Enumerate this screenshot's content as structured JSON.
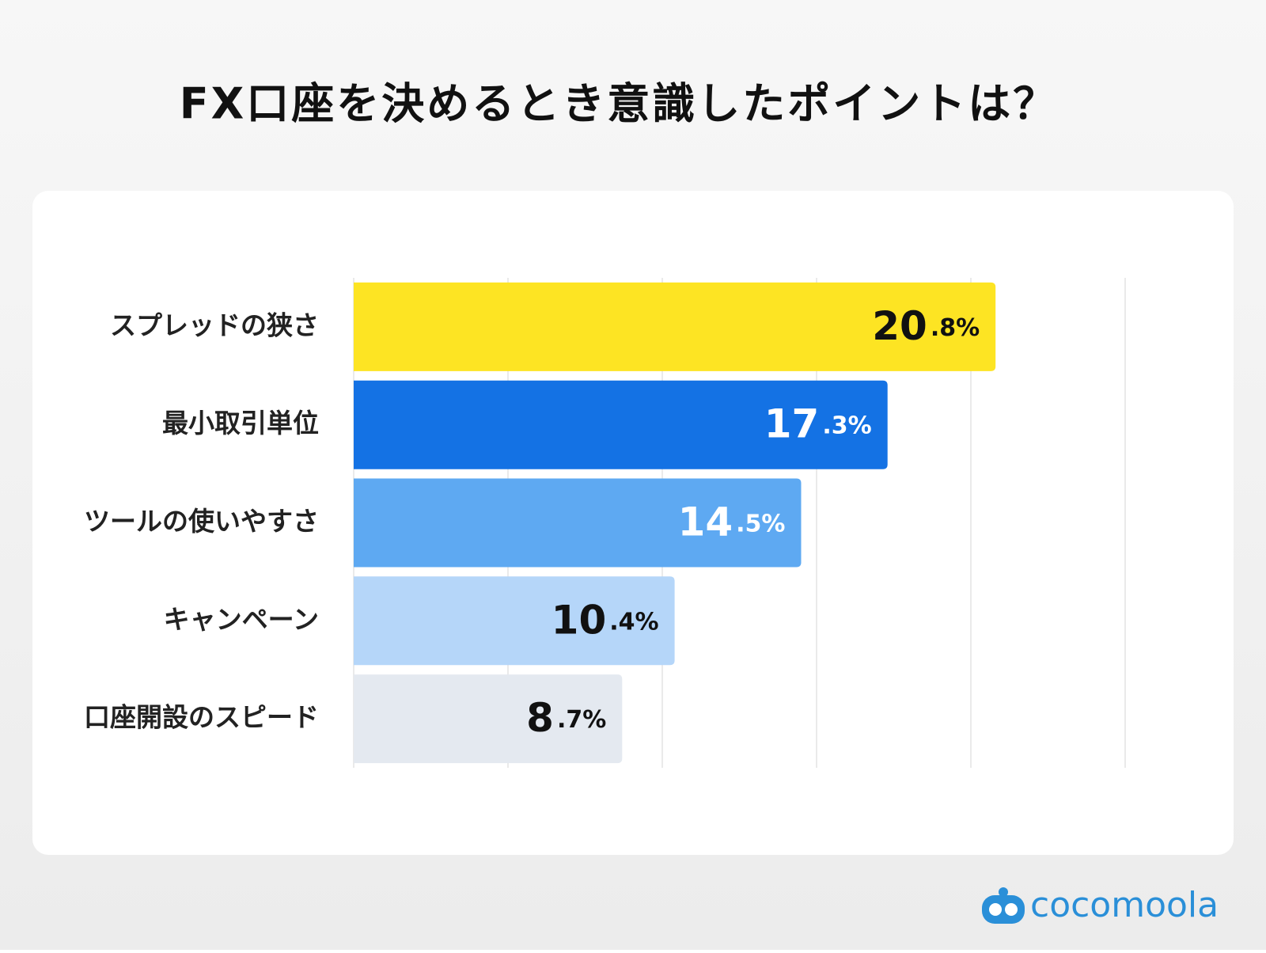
{
  "chart_data": {
    "type": "barh",
    "title": "FX口座を決めるとき意識したポイントは？",
    "categories": [
      "スプレッドの狭さ",
      "最小取引単位",
      "ツールの使いやすさ",
      "キャンペーン",
      "口座開設のスピード"
    ],
    "values": [
      20.8,
      17.3,
      14.5,
      10.4,
      8.7
    ],
    "value_labels": [
      "20.8%",
      "17.3%",
      "14.5%",
      "10.4%",
      "8.7%"
    ],
    "colors": [
      "#fde423",
      "#1472e4",
      "#5ea9f2",
      "#b5d6f9",
      "#e4e9f0"
    ],
    "value_label_colors": [
      "#111111",
      "#ffffff",
      "#ffffff",
      "#111111",
      "#111111"
    ],
    "xlim": [
      0,
      25
    ],
    "xticks": [
      0,
      5,
      10,
      15,
      20,
      25
    ],
    "grid": true
  },
  "brand": "cocomoola"
}
